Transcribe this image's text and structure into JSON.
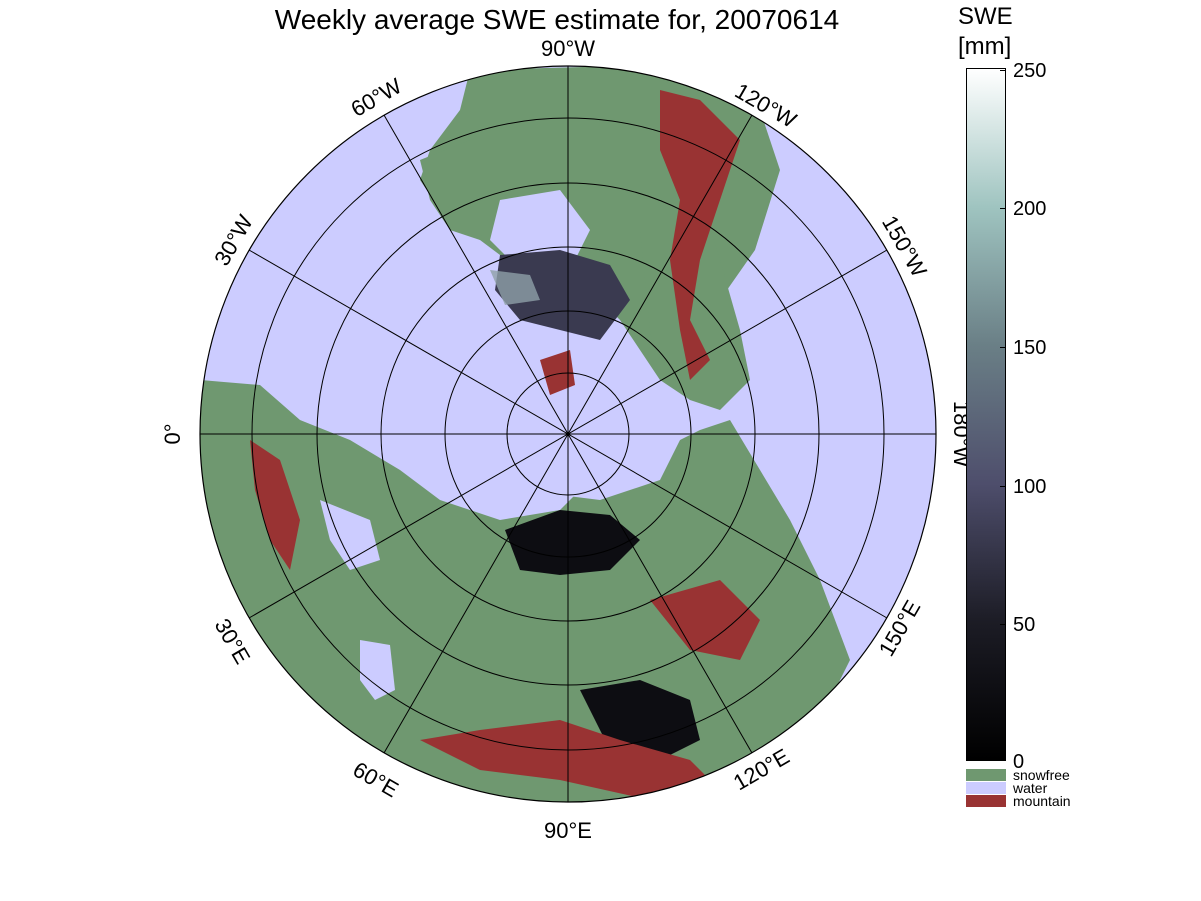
{
  "title": "Weekly average SWE estimate for, 20070614",
  "colorbar": {
    "title_line1": "SWE",
    "title_line2": "[mm]",
    "ticks": [
      "250",
      "200",
      "150",
      "100",
      "50",
      "0"
    ],
    "range": [
      0,
      250
    ],
    "gradient_stops": [
      "#ffffff",
      "#9fc4c0",
      "#6a7f86",
      "#4e4e6c",
      "#1c1c25",
      "#000000"
    ]
  },
  "categories": [
    {
      "label": "snowfree",
      "color": "#6f9870"
    },
    {
      "label": "water",
      "color": "#ccccff"
    },
    {
      "label": "mountain",
      "color": "#993333"
    }
  ],
  "map": {
    "projection": "north polar stereographic",
    "longitude_labels": [
      "90°W",
      "120°W",
      "150°W",
      "180°W",
      "150°E",
      "120°E",
      "90°E",
      "60°E",
      "30°E",
      "0°",
      "30°W",
      "60°W"
    ],
    "ocean_color": "#ccccff",
    "land_color": "#6f9870",
    "mountain_color": "#993333",
    "snow_colors": [
      "#0d0d12",
      "#3a3a50",
      "#8fa0a8"
    ]
  }
}
